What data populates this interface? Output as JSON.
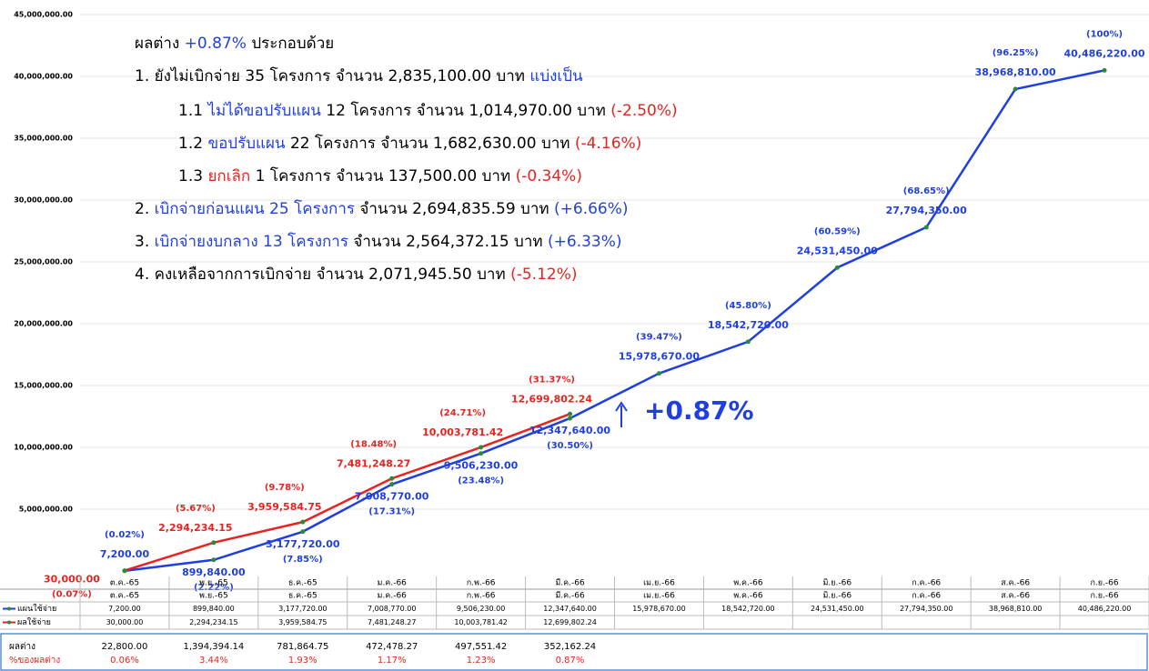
{
  "chart_data": {
    "type": "line",
    "categories": [
      "ต.ค.-65",
      "พ.ย.-65",
      "ธ.ค.-65",
      "ม.ค.-66",
      "ก.พ.-66",
      "มี.ค.-66",
      "เม.ย.-66",
      "พ.ค.-66",
      "มิ.ย.-66",
      "ก.ค.-66",
      "ส.ค.-66",
      "ก.ย.-66"
    ],
    "series": [
      {
        "name": "แผนใช้จ่าย",
        "color": "#1f3fe0",
        "values": [
          7200,
          899840,
          3177720,
          7008770,
          9506230,
          12347640,
          15978670,
          18542720,
          24531450,
          27794350,
          38968810,
          40486220
        ],
        "value_labels": [
          "7,200.00",
          "899,840.00",
          "3,177,720.00",
          "7,008,770.00",
          "9,506,230.00",
          "12,347,640.00",
          "15,978,670.00",
          "18,542,720.00",
          "24,531,450.00",
          "27,794,350.00",
          "38,968,810.00",
          "40,486,220.00"
        ],
        "percent_labels": [
          "(0.02%)",
          "(2.22%)",
          "(7.85%)",
          "(17.31%)",
          "(23.48%)",
          "(30.50%)",
          "(39.47%)",
          "(45.80%)",
          "(60.59%)",
          "(68.65%)",
          "(96.25%)",
          "(100%)"
        ]
      },
      {
        "name": "ผลใช้จ่าย",
        "color": "#e8231f",
        "values": [
          30000,
          2294234.15,
          3959584.75,
          7481248.27,
          10003781.42,
          12699802.24,
          null,
          null,
          null,
          null,
          null,
          null
        ],
        "value_labels": [
          "30,000.00",
          "2,294,234.15",
          "3,959,584.75",
          "7,481,248.27",
          "10,003,781.42",
          "12,699,802.24",
          null,
          null,
          null,
          null,
          null,
          null
        ],
        "percent_labels": [
          "(0.07%)",
          "(5.67%)",
          "(9.78%)",
          "(18.48%)",
          "(24.71%)",
          "(31.37%)",
          null,
          null,
          null,
          null,
          null,
          null
        ]
      }
    ],
    "ylim": [
      0,
      45000000
    ],
    "yticks": [
      {
        "value": 5000000,
        "label": "5,000,000.00"
      },
      {
        "value": 10000000,
        "label": "10,000,000.00"
      },
      {
        "value": 15000000,
        "label": "15,000,000.00"
      },
      {
        "value": 20000000,
        "label": "20,000,000.00"
      },
      {
        "value": 25000000,
        "label": "25,000,000.00"
      },
      {
        "value": 30000000,
        "label": "30,000,000.00"
      },
      {
        "value": 35000000,
        "label": "35,000,000.00"
      },
      {
        "value": 40000000,
        "label": "40,000,000.00"
      },
      {
        "value": 45000000,
        "label": "45,000,000.00"
      }
    ],
    "grid": true,
    "callout": "+0.87%",
    "note": [
      [
        {
          "text": "ผลต่าง ",
          "color": "#000"
        },
        {
          "text": "+0.87%",
          "color": "#1f3fe0"
        },
        {
          "text": " ประกอบด้วย",
          "color": "#000"
        }
      ],
      [
        {
          "text": "1.    ยังไม่เบิกจ่าย 35 โครงการ จำนวน 2,835,100.00 บาท ",
          "color": "#000"
        },
        {
          "text": "แบ่งเป็น",
          "color": "#1f3fe0"
        }
      ],
      [
        {
          "text": "1.1 ",
          "color": "#000"
        },
        {
          "text": "ไม่ได้ขอปรับแผน",
          "color": "#1f3fe0"
        },
        {
          "text": " 12 โครงการ จำนวน 1,014,970.00 บาท ",
          "color": "#000"
        },
        {
          "text": "(-2.50%)",
          "color": "#e8231f"
        }
      ],
      [
        {
          "text": "1.2 ",
          "color": "#000"
        },
        {
          "text": "ขอปรับแผน",
          "color": "#1f3fe0"
        },
        {
          "text": " 22 โครงการ จำนวน 1,682,630.00 บาท ",
          "color": "#000"
        },
        {
          "text": "(-4.16%)",
          "color": "#e8231f"
        }
      ],
      [
        {
          "text": "1.3 ",
          "color": "#000"
        },
        {
          "text": "ยกเลิก",
          "color": "#e8231f"
        },
        {
          "text": " 1 โครงการ จำนวน 137,500.00 บาท ",
          "color": "#000"
        },
        {
          "text": "(-0.34%)",
          "color": "#e8231f"
        }
      ],
      [
        {
          "text": "2. ",
          "color": "#000"
        },
        {
          "text": "เบิกจ่ายก่อนแผน 25 โครงการ",
          "color": "#1f3fe0"
        },
        {
          "text": " จำนวน 2,694,835.59 บาท ",
          "color": "#000"
        },
        {
          "text": "(+6.66%)",
          "color": "#1f3fe0"
        }
      ],
      [
        {
          "text": "3. ",
          "color": "#000"
        },
        {
          "text": "เบิกจ่ายงบกลาง 13 โครงการ",
          "color": "#1f3fe0"
        },
        {
          "text": " จำนวน 2,564,372.15 บาท ",
          "color": "#000"
        },
        {
          "text": "(+6.33%)",
          "color": "#1f3fe0"
        }
      ],
      [
        {
          "text": "4. คงเหลือจากการเบิกจ่าย จำนวน 2,071,945.50 บาท ",
          "color": "#000"
        },
        {
          "text": "(-5.12%)",
          "color": "#e8231f"
        }
      ]
    ],
    "diff_table": [
      {
        "label": "ผลต่าง",
        "color": "#000",
        "values": [
          22800,
          1394394.14,
          781864.75,
          472478.27,
          497551.42,
          352162.24
        ],
        "value_labels": [
          "22,800.00",
          "1,394,394.14",
          "781,864.75",
          "472,478.27",
          "497,551.42",
          "352,162.24"
        ]
      },
      {
        "label": "%ของผลต่าง",
        "color": "#e8231f",
        "values": [
          0.06,
          3.44,
          1.93,
          1.17,
          1.23,
          0.87
        ],
        "value_labels": [
          "0.06%",
          "3.44%",
          "1.93%",
          "1.17%",
          "1.23%",
          "0.87%"
        ]
      }
    ]
  }
}
